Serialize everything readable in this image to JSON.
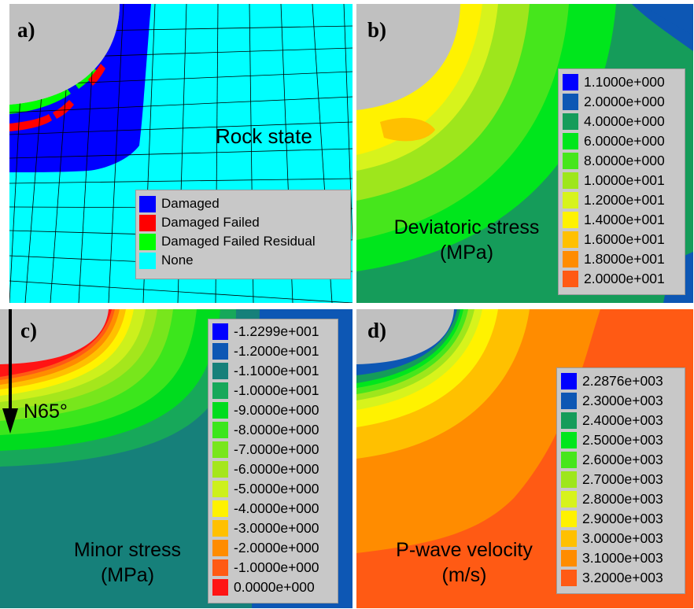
{
  "panels": {
    "a": {
      "label": "a)",
      "title": "Rock state",
      "legend": [
        {
          "label": "Damaged",
          "color": "#0000ff"
        },
        {
          "label": "Damaged Failed",
          "color": "#ff0000"
        },
        {
          "label": "Damaged Failed Residual",
          "color": "#00ff00"
        },
        {
          "label": "None",
          "color": "#00ffff"
        }
      ]
    },
    "b": {
      "label": "b)",
      "caption_line1": "Deviatoric stress",
      "caption_line2": "(MPa)",
      "legend": [
        {
          "label": "1.1000e+000",
          "color": "#0000ff"
        },
        {
          "label": "2.0000e+000",
          "color": "#0d57b4"
        },
        {
          "label": "4.0000e+000",
          "color": "#159c5a"
        },
        {
          "label": "6.0000e+000",
          "color": "#00e61c"
        },
        {
          "label": "8.0000e+000",
          "color": "#46e61c"
        },
        {
          "label": "1.0000e+001",
          "color": "#9ee61c"
        },
        {
          "label": "1.2000e+001",
          "color": "#d7f31c"
        },
        {
          "label": "1.4000e+001",
          "color": "#fff200"
        },
        {
          "label": "1.6000e+001",
          "color": "#ffc000"
        },
        {
          "label": "1.8000e+001",
          "color": "#ff8c00"
        },
        {
          "label": "2.0000e+001",
          "color": "#ff5a14"
        }
      ]
    },
    "c": {
      "label": "c)",
      "caption_line1": "Minor stress",
      "caption_line2": "(MPa)",
      "arrow_label": "N65°",
      "legend": [
        {
          "label": "-1.2299e+001",
          "color": "#0000ff"
        },
        {
          "label": "-1.2000e+001",
          "color": "#0d57b4"
        },
        {
          "label": "-1.1000e+001",
          "color": "#16807a"
        },
        {
          "label": "-1.0000e+001",
          "color": "#17a85a"
        },
        {
          "label": "-9.0000e+000",
          "color": "#00dc1e"
        },
        {
          "label": "-8.0000e+000",
          "color": "#3ce61c"
        },
        {
          "label": "-7.0000e+000",
          "color": "#78e61c"
        },
        {
          "label": "-6.0000e+000",
          "color": "#a5e61c"
        },
        {
          "label": "-5.0000e+000",
          "color": "#cdf01c"
        },
        {
          "label": "-4.0000e+000",
          "color": "#fff200"
        },
        {
          "label": "-3.0000e+000",
          "color": "#ffc000"
        },
        {
          "label": "-2.0000e+000",
          "color": "#ff8c00"
        },
        {
          "label": "-1.0000e+000",
          "color": "#ff5a14"
        },
        {
          "label": "0.0000e+000",
          "color": "#ff1414"
        }
      ]
    },
    "d": {
      "label": "d)",
      "caption_line1": "P-wave velocity",
      "caption_line2": "(m/s)",
      "legend": [
        {
          "label": "2.2876e+003",
          "color": "#0000ff"
        },
        {
          "label": "2.3000e+003",
          "color": "#0d57b4"
        },
        {
          "label": "2.4000e+003",
          "color": "#159c5a"
        },
        {
          "label": "2.5000e+003",
          "color": "#00e61c"
        },
        {
          "label": "2.6000e+003",
          "color": "#46e61c"
        },
        {
          "label": "2.7000e+003",
          "color": "#9ee61c"
        },
        {
          "label": "2.8000e+003",
          "color": "#d7f31c"
        },
        {
          "label": "2.9000e+003",
          "color": "#fff200"
        },
        {
          "label": "3.0000e+003",
          "color": "#ffc000"
        },
        {
          "label": "3.1000e+003",
          "color": "#ff8c00"
        },
        {
          "label": "3.2000e+003",
          "color": "#ff5a14"
        }
      ]
    }
  }
}
